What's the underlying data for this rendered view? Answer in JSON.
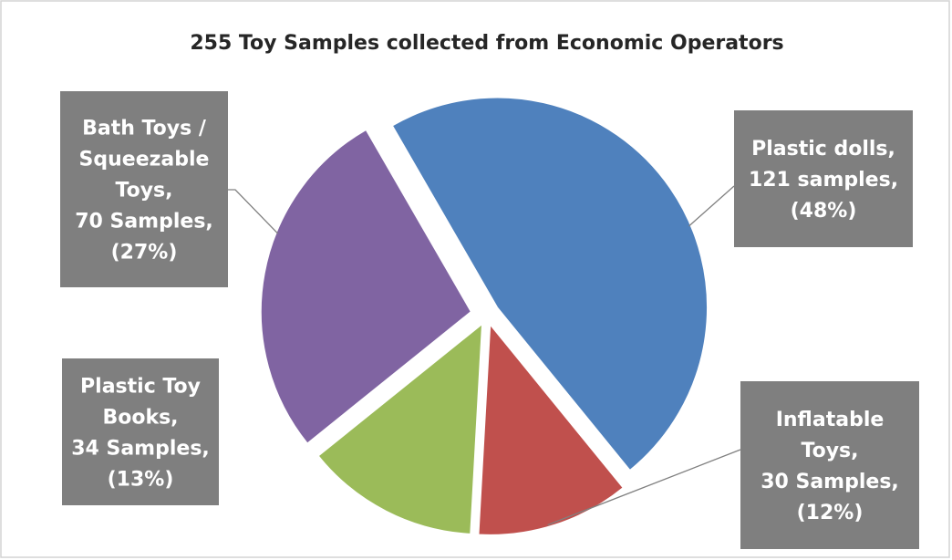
{
  "chart_data": {
    "type": "pie",
    "title": "255 Toy Samples collected from Economic Operators",
    "total": 255,
    "slices": [
      {
        "category": "Plastic dolls",
        "value": 121,
        "percent": 48,
        "color": "#4f81bd",
        "label_lines": [
          "Plastic dolls,",
          "121 samples,",
          "(48%)"
        ]
      },
      {
        "category": "Inflatable Toys",
        "value": 30,
        "percent": 12,
        "color": "#c0504d",
        "label_lines": [
          "Inflatable",
          "Toys,",
          "30 Samples,",
          "(12%)"
        ]
      },
      {
        "category": "Plastic Toy Books",
        "value": 34,
        "percent": 13,
        "color": "#9bbb59",
        "label_lines": [
          "Plastic Toy",
          "Books,",
          "34 Samples,",
          "(13%)"
        ]
      },
      {
        "category": "Bath Toys / Squeezable Toys",
        "value": 70,
        "percent": 27,
        "color": "#8064a2",
        "label_lines": [
          "Bath Toys /",
          "Squeezable",
          "Toys,",
          "70 Samples,",
          "(27%)"
        ]
      }
    ],
    "data_label_style": {
      "box_color": "#7f7f7f",
      "text_color": "#ffffff"
    },
    "exploded": true,
    "legend": "none"
  }
}
